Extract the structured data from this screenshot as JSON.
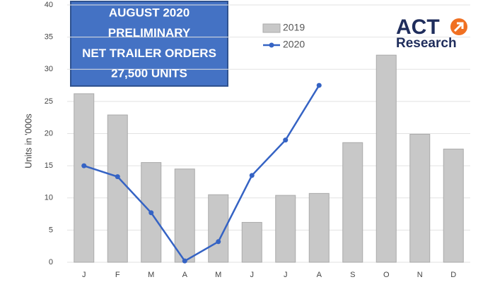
{
  "chart_data": {
    "type": "combo",
    "title": [
      "AUGUST 2020",
      "PRELIMINARY",
      "NET TRAILER ORDERS",
      "27,500 UNITS"
    ],
    "y_label": "Units in '000s",
    "categories": [
      "J",
      "F",
      "M",
      "A",
      "M",
      "J",
      "J",
      "A",
      "S",
      "O",
      "N",
      "D"
    ],
    "series": [
      {
        "name": "2019",
        "type": "bar",
        "color": "#c8c8c8",
        "values": [
          26.2,
          22.9,
          15.5,
          14.5,
          10.5,
          6.2,
          10.4,
          10.7,
          18.6,
          32.2,
          19.9,
          17.6
        ]
      },
      {
        "name": "2020",
        "type": "line",
        "color": "#3563c4",
        "values": [
          15.0,
          13.3,
          7.7,
          0.2,
          3.2,
          13.5,
          19.0,
          27.5,
          null,
          null,
          null,
          null
        ]
      }
    ],
    "ylim": [
      0,
      40
    ],
    "yticks": [
      0,
      5,
      10,
      15,
      20,
      25,
      30,
      35,
      40
    ],
    "grid": true
  },
  "logo": {
    "text": "ACT",
    "subtext": "Research"
  }
}
